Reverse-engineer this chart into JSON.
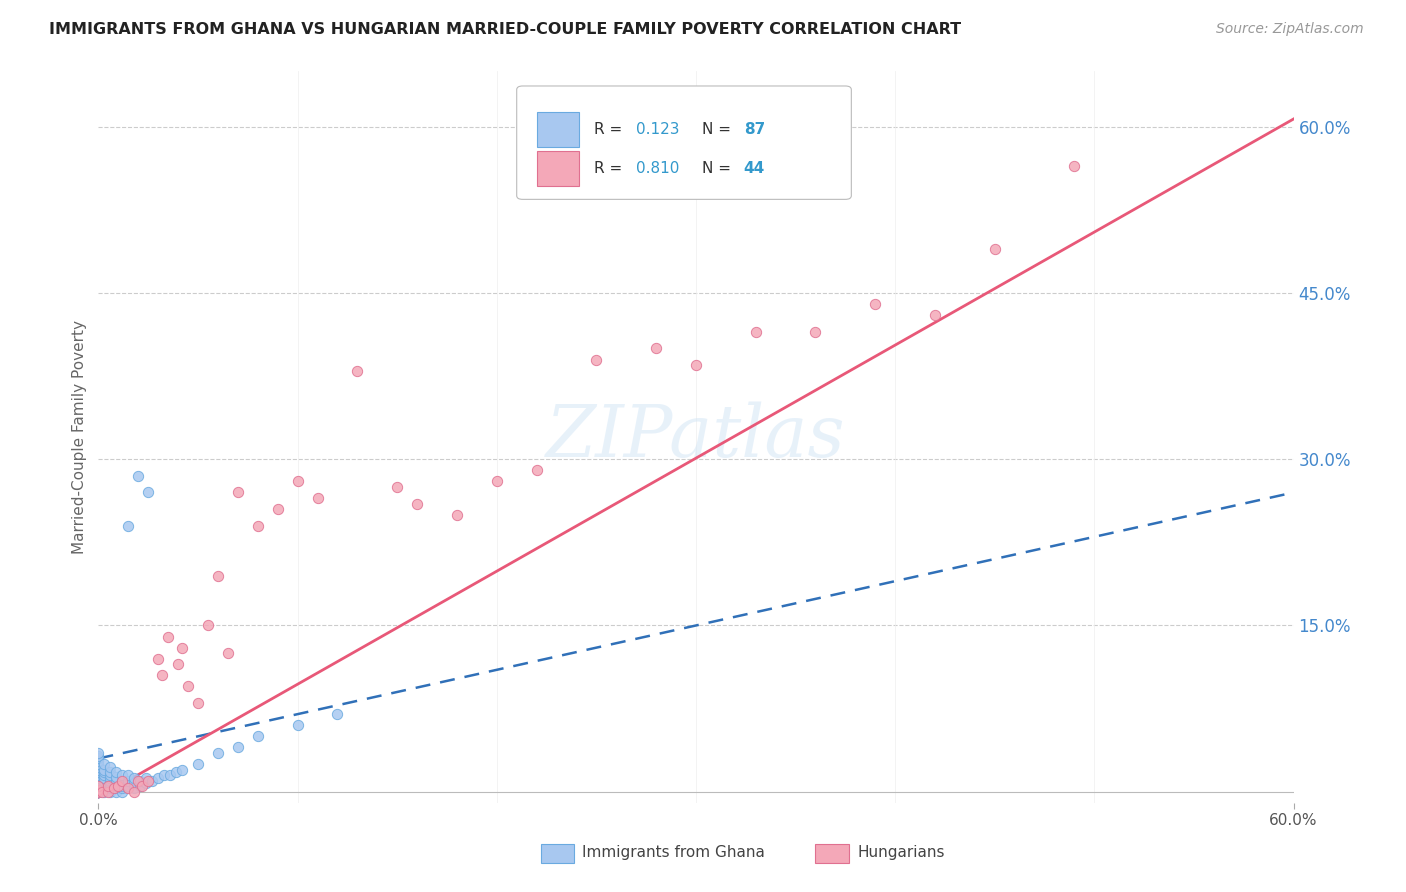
{
  "title": "IMMIGRANTS FROM GHANA VS HUNGARIAN MARRIED-COUPLE FAMILY POVERTY CORRELATION CHART",
  "source": "Source: ZipAtlas.com",
  "ylabel": "Married-Couple Family Poverty",
  "ytick_vals": [
    0.15,
    0.3,
    0.45,
    0.6
  ],
  "xlim": [
    0.0,
    0.6
  ],
  "ylim": [
    -0.01,
    0.65
  ],
  "ghana_color": "#a8c8f0",
  "ghana_edge_color": "#6aaae0",
  "hungarian_color": "#f4a8b8",
  "hungarian_edge_color": "#e07090",
  "ghana_line_color": "#3070b8",
  "hungarian_line_color": "#e85878",
  "watermark": "ZIPatlas",
  "ghana_R": 0.123,
  "ghana_N": 87,
  "hungarian_R": 0.81,
  "hungarian_N": 44,
  "ghana_line_slope": 0.4,
  "ghana_line_intercept": 0.03,
  "hungarian_line_slope": 1.02,
  "hungarian_line_intercept": -0.005,
  "ghana_scatter_x": [
    0.0,
    0.0,
    0.0,
    0.0,
    0.0,
    0.0,
    0.0,
    0.0,
    0.0,
    0.0,
    0.0,
    0.0,
    0.0,
    0.0,
    0.0,
    0.0,
    0.0,
    0.0,
    0.0,
    0.0,
    0.0,
    0.0,
    0.0,
    0.0,
    0.0,
    0.0,
    0.0,
    0.0,
    0.0,
    0.0,
    0.003,
    0.003,
    0.003,
    0.003,
    0.003,
    0.003,
    0.003,
    0.003,
    0.003,
    0.003,
    0.006,
    0.006,
    0.006,
    0.006,
    0.006,
    0.006,
    0.006,
    0.006,
    0.006,
    0.009,
    0.009,
    0.009,
    0.009,
    0.009,
    0.009,
    0.009,
    0.012,
    0.012,
    0.012,
    0.012,
    0.012,
    0.015,
    0.015,
    0.015,
    0.015,
    0.018,
    0.018,
    0.018,
    0.021,
    0.021,
    0.024,
    0.024,
    0.027,
    0.03,
    0.033,
    0.036,
    0.039,
    0.042,
    0.05,
    0.06,
    0.07,
    0.08,
    0.1,
    0.12,
    0.02,
    0.025,
    0.015
  ],
  "ghana_scatter_y": [
    0.0,
    0.0,
    0.0,
    0.0,
    0.0,
    0.0,
    0.003,
    0.003,
    0.005,
    0.005,
    0.008,
    0.008,
    0.01,
    0.01,
    0.012,
    0.012,
    0.015,
    0.015,
    0.018,
    0.018,
    0.02,
    0.02,
    0.022,
    0.025,
    0.025,
    0.028,
    0.03,
    0.03,
    0.032,
    0.035,
    0.0,
    0.003,
    0.005,
    0.008,
    0.01,
    0.012,
    0.015,
    0.018,
    0.02,
    0.025,
    0.0,
    0.003,
    0.005,
    0.008,
    0.01,
    0.012,
    0.015,
    0.018,
    0.022,
    0.0,
    0.003,
    0.005,
    0.008,
    0.01,
    0.013,
    0.018,
    0.0,
    0.003,
    0.005,
    0.01,
    0.015,
    0.003,
    0.005,
    0.01,
    0.015,
    0.003,
    0.008,
    0.012,
    0.005,
    0.01,
    0.008,
    0.012,
    0.01,
    0.012,
    0.015,
    0.015,
    0.018,
    0.02,
    0.025,
    0.035,
    0.04,
    0.05,
    0.06,
    0.07,
    0.285,
    0.27,
    0.24
  ],
  "hungarian_scatter_x": [
    0.0,
    0.0,
    0.0,
    0.002,
    0.005,
    0.005,
    0.008,
    0.01,
    0.012,
    0.015,
    0.018,
    0.02,
    0.022,
    0.025,
    0.03,
    0.032,
    0.035,
    0.04,
    0.042,
    0.045,
    0.05,
    0.055,
    0.06,
    0.065,
    0.07,
    0.08,
    0.09,
    0.1,
    0.11,
    0.13,
    0.15,
    0.16,
    0.18,
    0.2,
    0.22,
    0.25,
    0.28,
    0.3,
    0.33,
    0.36,
    0.39,
    0.42,
    0.45,
    0.49
  ],
  "hungarian_scatter_y": [
    0.0,
    0.002,
    0.005,
    0.0,
    0.0,
    0.005,
    0.003,
    0.005,
    0.01,
    0.003,
    0.0,
    0.01,
    0.005,
    0.01,
    0.12,
    0.105,
    0.14,
    0.115,
    0.13,
    0.095,
    0.08,
    0.15,
    0.195,
    0.125,
    0.27,
    0.24,
    0.255,
    0.28,
    0.265,
    0.38,
    0.275,
    0.26,
    0.25,
    0.28,
    0.29,
    0.39,
    0.4,
    0.385,
    0.415,
    0.415,
    0.44,
    0.43,
    0.49,
    0.565
  ]
}
